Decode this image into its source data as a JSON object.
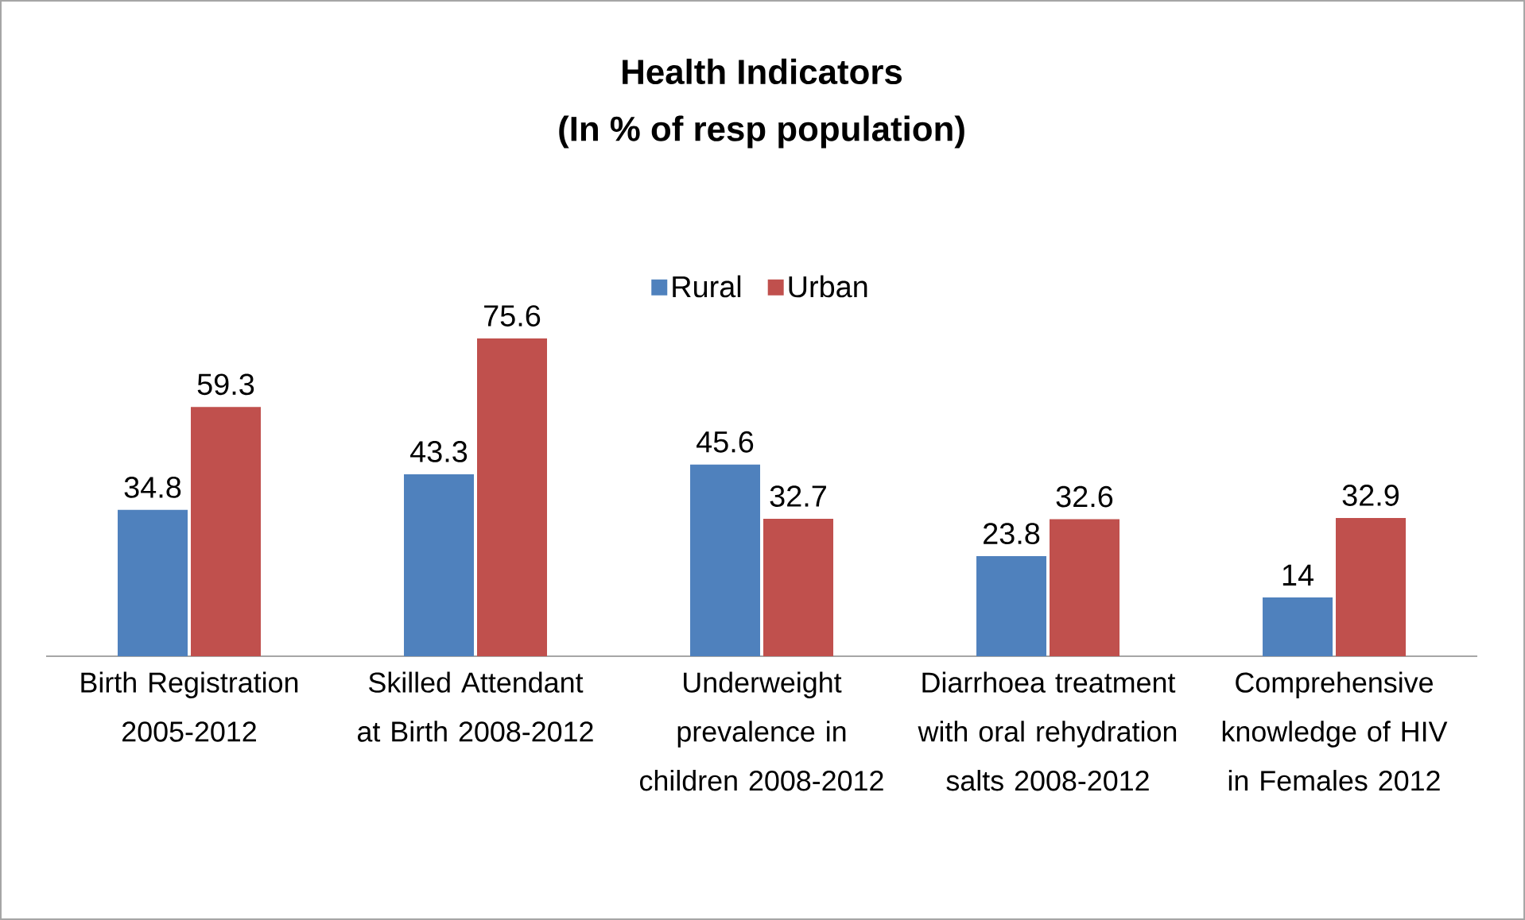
{
  "chart_data": {
    "type": "bar",
    "title": "Health Indicators",
    "subtitle": "(In % of resp population)",
    "categories": [
      "Birth Registration 2005-2012",
      "Skilled Attendant at Birth 2008-2012",
      "Underweight prevalence in children  2008-2012",
      "Diarrhoea treatment with oral rehydration salts 2008-2012",
      "Comprehensive knowledge of HIV in Females 2012"
    ],
    "series": [
      {
        "name": "Rural",
        "color": "#4f81bd",
        "values": [
          34.8,
          43.3,
          45.6,
          23.8,
          14
        ]
      },
      {
        "name": "Urban",
        "color": "#c0504d",
        "values": [
          59.3,
          75.6,
          32.7,
          32.6,
          32.9
        ]
      }
    ],
    "data_labels": true,
    "legend": "top"
  }
}
